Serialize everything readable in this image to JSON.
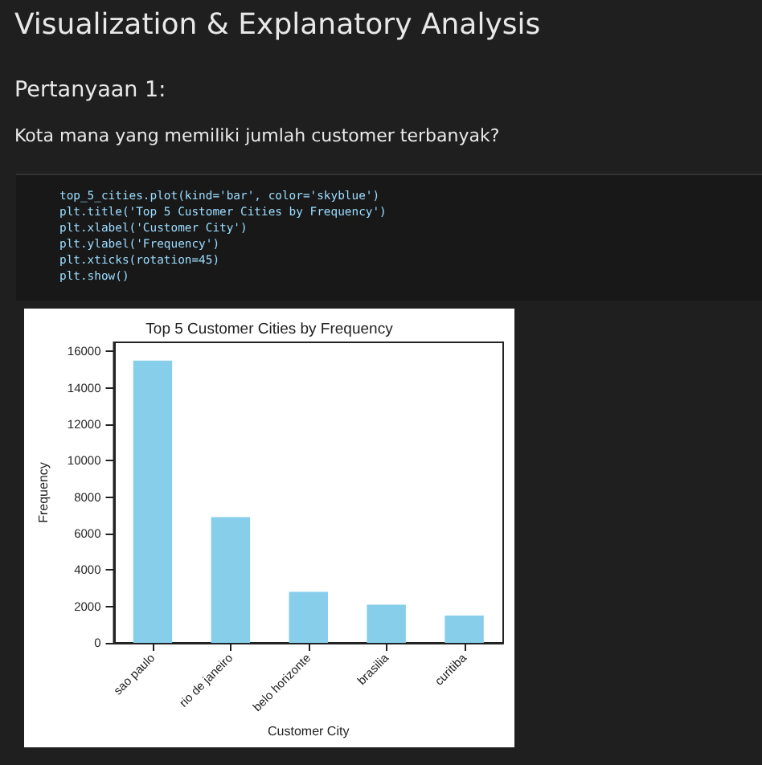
{
  "chart_data": {
    "type": "bar",
    "title": "Top 5 Customer Cities by Frequency",
    "xlabel": "Customer City",
    "ylabel": "Frequency",
    "categories": [
      "sao paulo",
      "rio de janeiro",
      "belo horizonte",
      "brasilia",
      "curitiba"
    ],
    "values": [
      15500,
      6900,
      2800,
      2100,
      1500
    ],
    "color": "#87ceeb",
    "ylim": [
      0,
      16500
    ],
    "yticks": [
      0,
      2000,
      4000,
      6000,
      8000,
      10000,
      12000,
      14000,
      16000
    ],
    "grid": false,
    "annotations": [
      "Visualization & Explanatory Analysis",
      "Pertanyaan 1:",
      "Kota mana yang memiliki jumlah customer terbanyak?",
      "top_5_cities.plot(kind='bar', color='skyblue')",
      "plt.title('Top 5 Customer Cities by Frequency')",
      "plt.xlabel('Customer City')",
      "plt.ylabel('Frequency')",
      "plt.xticks(rotation=45)",
      "plt.show()"
    ]
  }
}
